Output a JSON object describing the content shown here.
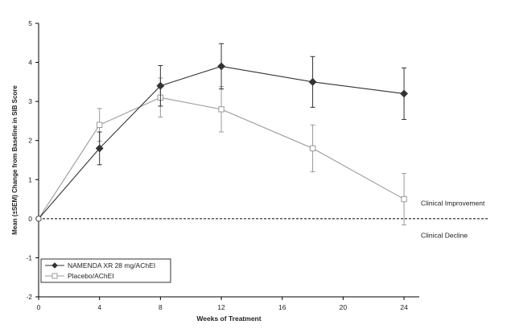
{
  "chart_data": {
    "type": "line",
    "title": "",
    "xlabel": "Weeks of Treatment",
    "ylabel": "Mean (±SEM) Change from Baseline in SIB Score",
    "xlim": [
      0,
      25
    ],
    "ylim": [
      -2,
      5
    ],
    "xticks": [
      0,
      4,
      8,
      12,
      16,
      20,
      24
    ],
    "yticks": [
      -2,
      -1,
      0,
      1,
      2,
      3,
      4,
      5
    ],
    "grid": false,
    "legend_position": "bottom-left",
    "series": [
      {
        "name": "NAMENDA XR 28 mg/AChEI",
        "marker": "diamond-filled",
        "color": "#333333",
        "x": [
          0,
          4,
          8,
          12,
          18,
          24
        ],
        "values": [
          0,
          1.8,
          3.4,
          3.9,
          3.5,
          3.2
        ],
        "err": [
          0,
          0.42,
          0.52,
          0.58,
          0.65,
          0.66
        ]
      },
      {
        "name": "Placebo/AChEI",
        "marker": "square-open",
        "color": "#9a9a9a",
        "x": [
          0,
          4,
          8,
          12,
          18,
          24
        ],
        "values": [
          0,
          2.4,
          3.1,
          2.8,
          1.8,
          0.5
        ],
        "err": [
          0,
          0.42,
          0.5,
          0.58,
          0.6,
          0.66
        ]
      }
    ],
    "reference_line": {
      "y": 0,
      "style": "dashed"
    },
    "annotations": [
      {
        "text": "Clinical Improvement",
        "y": 0.4
      },
      {
        "text": "Clinical Decline",
        "y": -0.42
      }
    ]
  }
}
